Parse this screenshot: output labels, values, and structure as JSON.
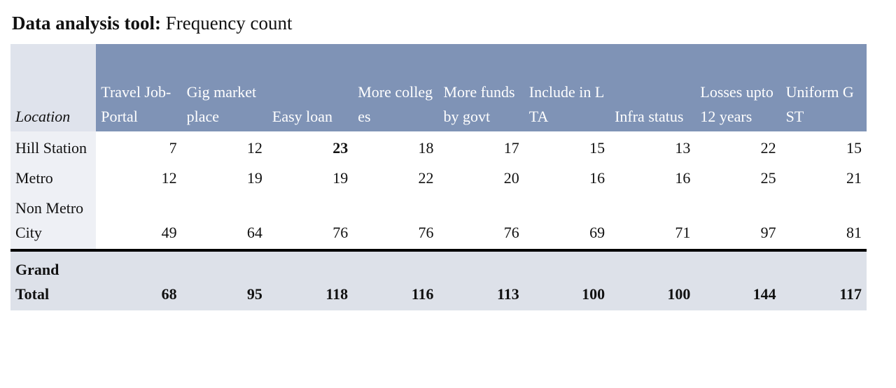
{
  "header": {
    "title_bold": "Data analysis tool:",
    "title_rest": "Frequency count"
  },
  "table": {
    "columns": [
      "Location",
      "Travel Job-Portal",
      "Gig marketplace",
      "Easy loan",
      "More colleges",
      "More funds by govt",
      "Include in LTA",
      "Infra status",
      "Losses upto 12 years",
      "Uniform GST"
    ],
    "rows": [
      [
        "Hill Station",
        7,
        12,
        23,
        18,
        17,
        15,
        13,
        22,
        15
      ],
      [
        "Metro",
        12,
        19,
        19,
        22,
        20,
        16,
        16,
        25,
        21
      ],
      [
        "Non Metro City",
        49,
        64,
        76,
        76,
        76,
        69,
        71,
        97,
        81
      ]
    ],
    "total": [
      "Grand Total",
      68,
      95,
      118,
      116,
      113,
      100,
      100,
      144,
      117
    ]
  }
}
